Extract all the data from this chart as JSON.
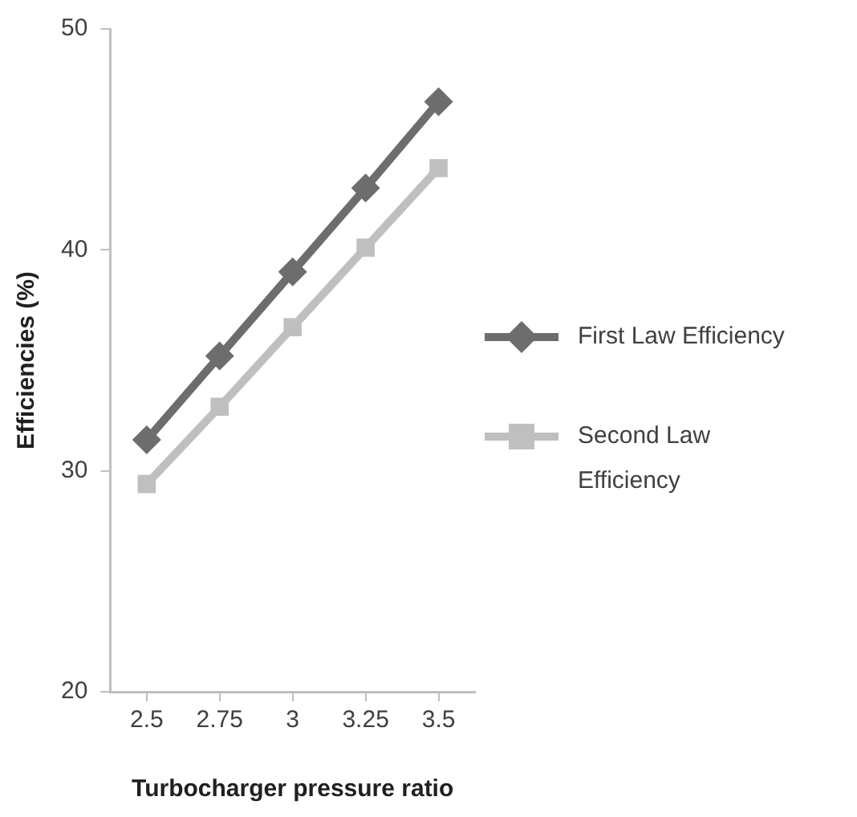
{
  "chart_data": {
    "type": "line",
    "xlabel": "Turbocharger pressure ratio",
    "ylabel": "Efficiencies (%)",
    "categories": [
      "2.5",
      "2.75",
      "3",
      "3.25",
      "3.5"
    ],
    "series": [
      {
        "name": "First Law Efficiency",
        "color": "#6d6d6e",
        "marker": "diamond",
        "values": [
          31.4,
          35.2,
          39.0,
          42.8,
          46.7
        ]
      },
      {
        "name": "Second Law Efficiency",
        "color": "#bfbfbf",
        "marker": "square",
        "values": [
          29.4,
          32.9,
          36.5,
          40.1,
          43.7
        ]
      }
    ],
    "ylim": [
      20,
      50
    ],
    "yticks": [
      20,
      30,
      40,
      50
    ],
    "grid": false,
    "legend": "right",
    "line_style": "solid"
  }
}
